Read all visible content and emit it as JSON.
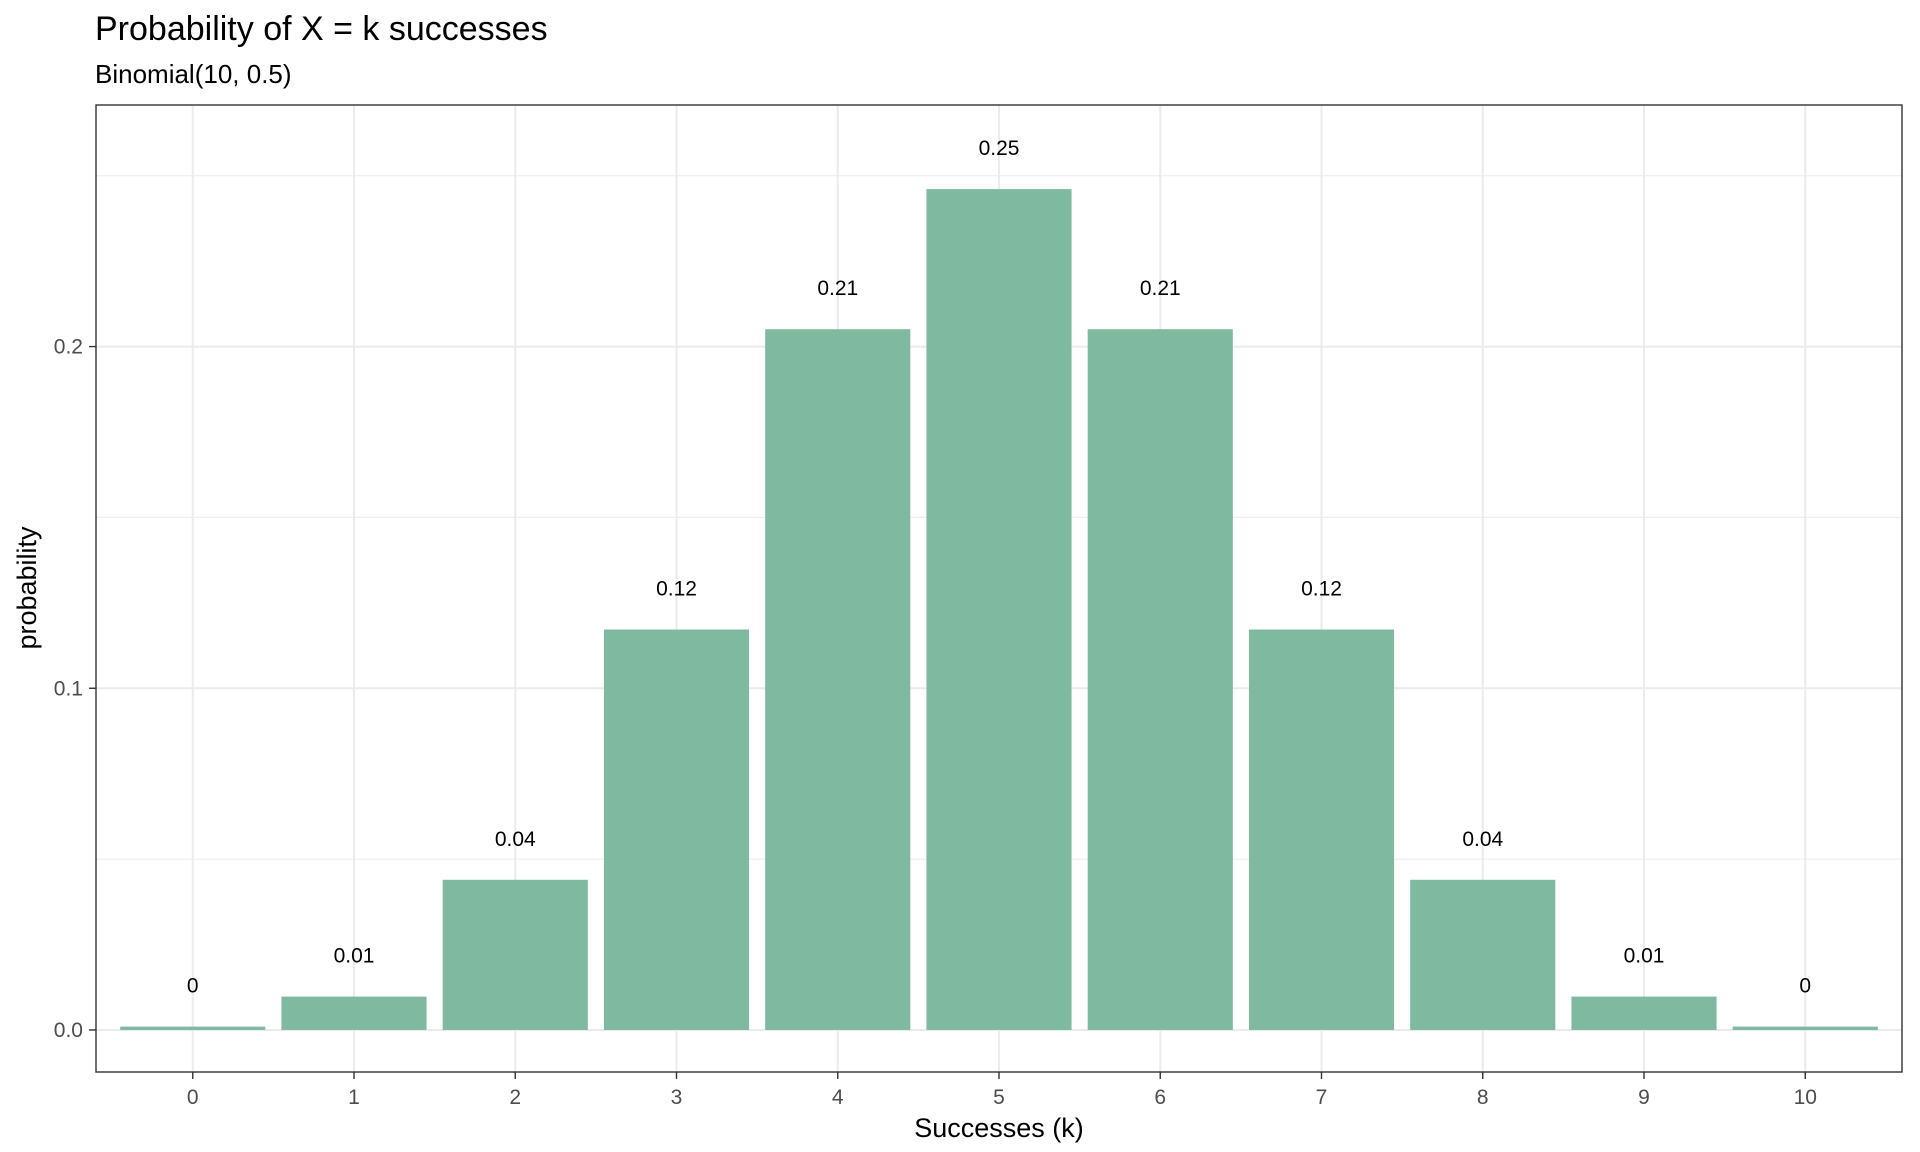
{
  "chart_data": {
    "type": "bar",
    "title": "Probability of X = k successes",
    "subtitle": "Binomial(10, 0.5)",
    "xlabel": "Successes (k)",
    "ylabel": "probability",
    "categories": [
      "0",
      "1",
      "2",
      "3",
      "4",
      "5",
      "6",
      "7",
      "8",
      "9",
      "10"
    ],
    "values": [
      0.00098,
      0.00977,
      0.04395,
      0.11719,
      0.20508,
      0.24609,
      0.20508,
      0.11719,
      0.04395,
      0.00977,
      0.00098
    ],
    "data_labels": [
      "0",
      "0.01",
      "0.04",
      "0.12",
      "0.21",
      "0.25",
      "0.21",
      "0.12",
      "0.04",
      "0.01",
      "0"
    ],
    "y_ticks": [
      0.0,
      0.1,
      0.2
    ],
    "y_tick_labels": [
      "0.0",
      "0.1",
      "0.2"
    ],
    "ylim": [
      -0.0123,
      0.2707
    ],
    "grid": true,
    "bar_color": "#7fb9a0"
  }
}
